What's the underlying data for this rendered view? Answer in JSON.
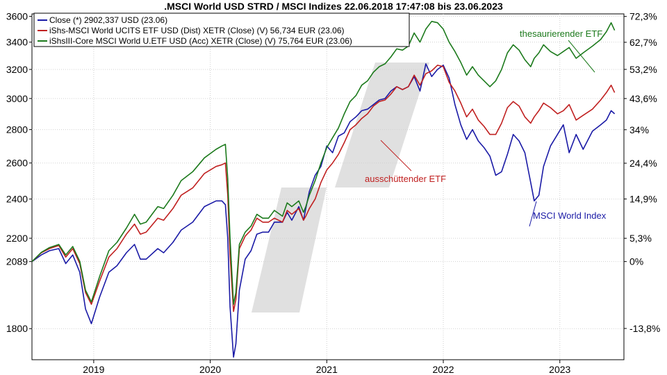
{
  "chart_data": {
    "type": "line",
    "title": ".MSCI World USD STRD / MSCI Indizes 22.06.2018 17:47:08 bis 23.06.2023",
    "x_ticks": [
      "2019",
      "2020",
      "2021",
      "2022",
      "2023"
    ],
    "y_left_ticks": [
      "3600",
      "3400",
      "3200",
      "3000",
      "2800",
      "2600",
      "2400",
      "2200",
      "2089",
      "1800"
    ],
    "y_left_range": [
      1680,
      3620
    ],
    "y_right_ticks": [
      "72,3%",
      "62,7%",
      "53,2%",
      "43,6%",
      "34%",
      "24,4%",
      "14,9%",
      "5,3%",
      "0%",
      "-13,8%"
    ],
    "y_scale": "log",
    "base_value": 2089,
    "legend": [
      "Close (*) 2902,337 USD (23.06)",
      "iShs-MSCI World UCITS ETF USD (Dist) XETR (Close) (V) 56,734 EUR (23.06)",
      "iShsIII-Core MSCI World U.ETF USD (Acc) XETR (Close) (V) 75,764 EUR (23.06)"
    ],
    "annotations": {
      "green": "thesaurierender ETF",
      "red": "ausschüttender ETF",
      "blue": "MSCI World Index"
    },
    "series": [
      {
        "name": "MSCI World Index",
        "color": "#1a1aa6",
        "x": [
          2018.47,
          2018.55,
          2018.62,
          2018.7,
          2018.76,
          2018.82,
          2018.88,
          2018.93,
          2018.98,
          2019.05,
          2019.13,
          2019.2,
          2019.28,
          2019.35,
          2019.4,
          2019.45,
          2019.55,
          2019.6,
          2019.68,
          2019.75,
          2019.85,
          2019.95,
          2020.05,
          2020.1,
          2020.13,
          2020.15,
          2020.17,
          2020.2,
          2020.22,
          2020.25,
          2020.3,
          2020.35,
          2020.4,
          2020.45,
          2020.5,
          2020.55,
          2020.62,
          2020.66,
          2020.7,
          2020.76,
          2020.8,
          2020.82,
          2020.85,
          2020.9,
          2020.95,
          2021.0,
          2021.05,
          2021.1,
          2021.15,
          2021.2,
          2021.25,
          2021.3,
          2021.35,
          2021.4,
          2021.45,
          2021.5,
          2021.55,
          2021.6,
          2021.65,
          2021.7,
          2021.75,
          2021.8,
          2021.85,
          2021.9,
          2021.95,
          2022.0,
          2022.05,
          2022.1,
          2022.15,
          2022.2,
          2022.25,
          2022.3,
          2022.35,
          2022.4,
          2022.45,
          2022.5,
          2022.55,
          2022.6,
          2022.65,
          2022.7,
          2022.75,
          2022.78,
          2022.82,
          2022.86,
          2022.92,
          2022.98,
          2023.03,
          2023.08,
          2023.14,
          2023.2,
          2023.28,
          2023.35,
          2023.4,
          2023.44,
          2023.47
        ],
        "values": [
          2089,
          2120,
          2140,
          2150,
          2080,
          2120,
          2040,
          1880,
          1820,
          1930,
          2040,
          2070,
          2130,
          2170,
          2100,
          2100,
          2150,
          2130,
          2180,
          2240,
          2280,
          2360,
          2390,
          2390,
          2370,
          2200,
          1890,
          1690,
          1740,
          1960,
          2100,
          2140,
          2220,
          2230,
          2230,
          2280,
          2280,
          2330,
          2290,
          2360,
          2290,
          2350,
          2440,
          2530,
          2580,
          2700,
          2660,
          2760,
          2780,
          2850,
          2880,
          2920,
          2930,
          2960,
          2990,
          3000,
          3050,
          3080,
          3060,
          3080,
          3150,
          3050,
          3240,
          3150,
          3200,
          3230,
          3140,
          2960,
          2830,
          2740,
          2800,
          2730,
          2690,
          2640,
          2530,
          2550,
          2650,
          2770,
          2730,
          2660,
          2490,
          2390,
          2420,
          2580,
          2700,
          2770,
          2830,
          2660,
          2770,
          2680,
          2790,
          2830,
          2860,
          2920,
          2900
        ]
      },
      {
        "name": "ausschüttender ETF",
        "color": "#c02020",
        "x": [
          2018.47,
          2018.55,
          2018.62,
          2018.7,
          2018.76,
          2018.82,
          2018.88,
          2018.93,
          2018.98,
          2019.05,
          2019.13,
          2019.2,
          2019.28,
          2019.35,
          2019.4,
          2019.45,
          2019.55,
          2019.6,
          2019.68,
          2019.75,
          2019.85,
          2019.95,
          2020.05,
          2020.1,
          2020.13,
          2020.15,
          2020.17,
          2020.2,
          2020.22,
          2020.25,
          2020.3,
          2020.35,
          2020.4,
          2020.45,
          2020.5,
          2020.55,
          2020.62,
          2020.66,
          2020.7,
          2020.76,
          2020.8,
          2020.82,
          2020.85,
          2020.9,
          2020.95,
          2021.0,
          2021.05,
          2021.1,
          2021.15,
          2021.2,
          2021.25,
          2021.3,
          2021.35,
          2021.4,
          2021.45,
          2021.5,
          2021.55,
          2021.6,
          2021.65,
          2021.7,
          2021.75,
          2021.8,
          2021.85,
          2021.9,
          2021.95,
          2022.0,
          2022.05,
          2022.1,
          2022.15,
          2022.2,
          2022.25,
          2022.3,
          2022.35,
          2022.4,
          2022.45,
          2022.5,
          2022.55,
          2022.6,
          2022.65,
          2022.7,
          2022.75,
          2022.78,
          2022.82,
          2022.86,
          2022.92,
          2022.98,
          2023.03,
          2023.08,
          2023.14,
          2023.2,
          2023.28,
          2023.35,
          2023.4,
          2023.44,
          2023.47
        ],
        "values": [
          2089,
          2130,
          2150,
          2165,
          2110,
          2150,
          2080,
          1950,
          1900,
          2000,
          2110,
          2150,
          2220,
          2270,
          2220,
          2230,
          2300,
          2290,
          2350,
          2420,
          2460,
          2540,
          2580,
          2590,
          2600,
          2420,
          2120,
          1870,
          1920,
          2150,
          2210,
          2240,
          2300,
          2280,
          2280,
          2300,
          2280,
          2340,
          2320,
          2350,
          2290,
          2310,
          2350,
          2400,
          2490,
          2560,
          2600,
          2650,
          2720,
          2800,
          2830,
          2870,
          2900,
          2950,
          2980,
          2990,
          3030,
          3080,
          3060,
          3080,
          3160,
          3090,
          3170,
          3190,
          3230,
          3220,
          3110,
          3050,
          2970,
          2880,
          2930,
          2860,
          2820,
          2770,
          2770,
          2840,
          2940,
          2980,
          2950,
          2880,
          2840,
          2880,
          2920,
          2970,
          2940,
          2900,
          2920,
          2960,
          2860,
          2890,
          2930,
          2990,
          3040,
          3090,
          3040
        ]
      },
      {
        "name": "thesaurierender ETF",
        "color": "#1c7a1c",
        "x": [
          2018.47,
          2018.55,
          2018.62,
          2018.7,
          2018.76,
          2018.82,
          2018.88,
          2018.93,
          2018.98,
          2019.05,
          2019.13,
          2019.2,
          2019.28,
          2019.35,
          2019.4,
          2019.45,
          2019.55,
          2019.6,
          2019.68,
          2019.75,
          2019.85,
          2019.95,
          2020.05,
          2020.1,
          2020.13,
          2020.15,
          2020.17,
          2020.2,
          2020.22,
          2020.25,
          2020.3,
          2020.35,
          2020.4,
          2020.45,
          2020.5,
          2020.55,
          2020.62,
          2020.66,
          2020.7,
          2020.76,
          2020.8,
          2020.82,
          2020.85,
          2020.9,
          2020.95,
          2021.0,
          2021.05,
          2021.1,
          2021.15,
          2021.2,
          2021.25,
          2021.3,
          2021.35,
          2021.4,
          2021.45,
          2021.5,
          2021.55,
          2021.6,
          2021.65,
          2021.7,
          2021.75,
          2021.8,
          2021.85,
          2021.9,
          2021.95,
          2022.0,
          2022.05,
          2022.1,
          2022.15,
          2022.2,
          2022.25,
          2022.3,
          2022.35,
          2022.4,
          2022.45,
          2022.5,
          2022.55,
          2022.6,
          2022.65,
          2022.7,
          2022.75,
          2022.78,
          2022.82,
          2022.86,
          2022.92,
          2022.98,
          2023.03,
          2023.08,
          2023.14,
          2023.2,
          2023.28,
          2023.35,
          2023.4,
          2023.44,
          2023.47
        ],
        "values": [
          2089,
          2132,
          2155,
          2170,
          2120,
          2160,
          2090,
          1960,
          1910,
          2020,
          2140,
          2180,
          2250,
          2320,
          2270,
          2280,
          2360,
          2350,
          2420,
          2500,
          2550,
          2630,
          2680,
          2700,
          2710,
          2510,
          2200,
          1900,
          1950,
          2170,
          2230,
          2260,
          2320,
          2300,
          2300,
          2340,
          2310,
          2380,
          2360,
          2390,
          2330,
          2360,
          2420,
          2500,
          2600,
          2690,
          2750,
          2810,
          2900,
          2980,
          3020,
          3090,
          3120,
          3180,
          3220,
          3240,
          3290,
          3350,
          3340,
          3370,
          3470,
          3400,
          3500,
          3560,
          3550,
          3500,
          3400,
          3330,
          3250,
          3160,
          3220,
          3160,
          3120,
          3080,
          3120,
          3200,
          3320,
          3380,
          3340,
          3270,
          3220,
          3280,
          3320,
          3380,
          3330,
          3300,
          3330,
          3360,
          3280,
          3320,
          3370,
          3420,
          3480,
          3550,
          3490
        ]
      }
    ]
  }
}
